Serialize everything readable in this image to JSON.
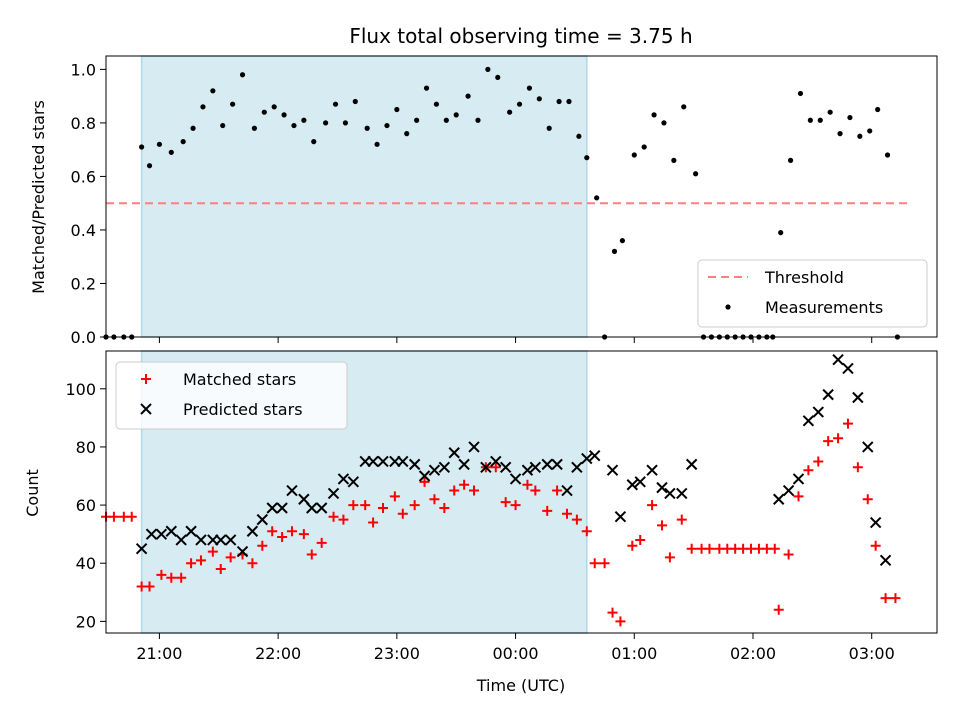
{
  "colors": {
    "span": "#add8e6",
    "threshold": "#ff7f7f",
    "measurements": "#000000",
    "matched": "#ff0000",
    "predicted": "#000000"
  },
  "chart_data": [
    {
      "type": "scatter",
      "title": "Flux total observing time = 3.75 h",
      "ylabel": "Matched/Predicted stars",
      "ylim": [
        0,
        1.05
      ],
      "yticks": [
        "0.0",
        "0.2",
        "0.4",
        "0.6",
        "0.8",
        "1.0"
      ],
      "xlim": [
        "20:33",
        "03:33"
      ],
      "span": [
        "20:51",
        "00:36"
      ],
      "legend": {
        "position": "lower-right",
        "entries": [
          "Threshold",
          "Measurements"
        ]
      },
      "threshold": {
        "name": "Threshold",
        "value": 0.5,
        "x": [
          "20:33",
          "03:18"
        ]
      },
      "series": [
        {
          "name": "Measurements",
          "points": [
            [
              "20:33",
              0
            ],
            [
              "20:37",
              0
            ],
            [
              "20:42",
              0
            ],
            [
              "20:46",
              0
            ],
            [
              "20:51",
              0.71
            ],
            [
              "20:55",
              0.64
            ],
            [
              "21:00",
              0.72
            ],
            [
              "21:06",
              0.69
            ],
            [
              "21:12",
              0.73
            ],
            [
              "21:17",
              0.78
            ],
            [
              "21:22",
              0.86
            ],
            [
              "21:27",
              0.92
            ],
            [
              "21:32",
              0.79
            ],
            [
              "21:37",
              0.87
            ],
            [
              "21:42",
              0.98
            ],
            [
              "21:48",
              0.78
            ],
            [
              "21:53",
              0.84
            ],
            [
              "21:58",
              0.86
            ],
            [
              "22:03",
              0.83
            ],
            [
              "22:08",
              0.79
            ],
            [
              "22:13",
              0.81
            ],
            [
              "22:18",
              0.73
            ],
            [
              "22:24",
              0.8
            ],
            [
              "22:29",
              0.87
            ],
            [
              "22:34",
              0.8
            ],
            [
              "22:39",
              0.88
            ],
            [
              "22:45",
              0.78
            ],
            [
              "22:50",
              0.72
            ],
            [
              "22:55",
              0.79
            ],
            [
              "23:00",
              0.85
            ],
            [
              "23:05",
              0.76
            ],
            [
              "23:10",
              0.81
            ],
            [
              "23:15",
              0.93
            ],
            [
              "23:20",
              0.87
            ],
            [
              "23:25",
              0.81
            ],
            [
              "23:30",
              0.83
            ],
            [
              "23:36",
              0.9
            ],
            [
              "23:41",
              0.81
            ],
            [
              "23:46",
              1.0
            ],
            [
              "23:51",
              0.97
            ],
            [
              "23:57",
              0.84
            ],
            [
              "00:02",
              0.87
            ],
            [
              "00:07",
              0.93
            ],
            [
              "00:12",
              0.89
            ],
            [
              "00:17",
              0.78
            ],
            [
              "00:22",
              0.88
            ],
            [
              "00:27",
              0.88
            ],
            [
              "00:32",
              0.75
            ],
            [
              "00:36",
              0.67
            ],
            [
              "00:41",
              0.52
            ],
            [
              "00:45",
              0
            ],
            [
              "00:50",
              0.32
            ],
            [
              "00:54",
              0.36
            ],
            [
              "01:00",
              0.68
            ],
            [
              "01:05",
              0.71
            ],
            [
              "01:10",
              0.83
            ],
            [
              "01:15",
              0.8
            ],
            [
              "01:20",
              0.66
            ],
            [
              "01:25",
              0.86
            ],
            [
              "01:31",
              0.61
            ],
            [
              "01:35",
              0
            ],
            [
              "01:39",
              0
            ],
            [
              "01:43",
              0
            ],
            [
              "01:47",
              0
            ],
            [
              "01:51",
              0
            ],
            [
              "01:55",
              0
            ],
            [
              "01:59",
              0
            ],
            [
              "02:03",
              0
            ],
            [
              "02:07",
              0
            ],
            [
              "02:10",
              0
            ],
            [
              "02:14",
              0.39
            ],
            [
              "02:19",
              0.66
            ],
            [
              "02:24",
              0.91
            ],
            [
              "02:29",
              0.81
            ],
            [
              "02:34",
              0.81
            ],
            [
              "02:39",
              0.84
            ],
            [
              "02:44",
              0.76
            ],
            [
              "02:49",
              0.82
            ],
            [
              "02:54",
              0.75
            ],
            [
              "02:59",
              0.77
            ],
            [
              "03:03",
              0.85
            ],
            [
              "03:08",
              0.68
            ],
            [
              "03:13",
              0
            ]
          ]
        }
      ]
    },
    {
      "type": "scatter",
      "xlabel": "Time (UTC)",
      "ylabel": "Count",
      "ylim": [
        16,
        113
      ],
      "yticks": [
        "20",
        "40",
        "60",
        "80",
        "100"
      ],
      "xticks": [
        "21:00",
        "22:00",
        "23:00",
        "00:00",
        "01:00",
        "02:00",
        "03:00"
      ],
      "xlim": [
        "20:33",
        "03:33"
      ],
      "span": [
        "20:51",
        "00:36"
      ],
      "legend": {
        "position": "upper-left",
        "entries": [
          "Matched stars",
          "Predicted stars"
        ]
      },
      "series": [
        {
          "name": "Matched stars",
          "points": [
            [
              "20:33",
              56
            ],
            [
              "20:37",
              56
            ],
            [
              "20:42",
              56
            ],
            [
              "20:46",
              56
            ],
            [
              "20:51",
              32
            ],
            [
              "20:55",
              32
            ],
            [
              "21:01",
              36
            ],
            [
              "21:06",
              35
            ],
            [
              "21:11",
              35
            ],
            [
              "21:16",
              40
            ],
            [
              "21:21",
              41
            ],
            [
              "21:27",
              44
            ],
            [
              "21:31",
              38
            ],
            [
              "21:36",
              42
            ],
            [
              "21:42",
              43
            ],
            [
              "21:47",
              40
            ],
            [
              "21:52",
              46
            ],
            [
              "21:57",
              51
            ],
            [
              "22:02",
              49
            ],
            [
              "22:07",
              51
            ],
            [
              "22:13",
              50
            ],
            [
              "22:17",
              43
            ],
            [
              "22:22",
              47
            ],
            [
              "22:28",
              56
            ],
            [
              "22:33",
              55
            ],
            [
              "22:38",
              60
            ],
            [
              "22:44",
              60
            ],
            [
              "22:48",
              54
            ],
            [
              "22:53",
              59
            ],
            [
              "22:59",
              63
            ],
            [
              "23:03",
              57
            ],
            [
              "23:09",
              60
            ],
            [
              "23:14",
              68
            ],
            [
              "23:19",
              62
            ],
            [
              "23:24",
              59
            ],
            [
              "23:29",
              65
            ],
            [
              "23:34",
              67
            ],
            [
              "23:39",
              65
            ],
            [
              "23:45",
              73
            ],
            [
              "23:50",
              73
            ],
            [
              "23:55",
              61
            ],
            [
              "00:00",
              60
            ],
            [
              "00:06",
              67
            ],
            [
              "00:10",
              65
            ],
            [
              "00:16",
              58
            ],
            [
              "00:21",
              65
            ],
            [
              "00:26",
              57
            ],
            [
              "00:31",
              55
            ],
            [
              "00:36",
              51
            ],
            [
              "00:40",
              40
            ],
            [
              "00:45",
              40
            ],
            [
              "00:49",
              23
            ],
            [
              "00:53",
              20
            ],
            [
              "00:59",
              46
            ],
            [
              "01:03",
              48
            ],
            [
              "01:09",
              60
            ],
            [
              "01:14",
              53
            ],
            [
              "01:18",
              42
            ],
            [
              "01:24",
              55
            ],
            [
              "01:29",
              45
            ],
            [
              "01:34",
              45
            ],
            [
              "01:38",
              45
            ],
            [
              "01:43",
              45
            ],
            [
              "01:47",
              45
            ],
            [
              "01:51",
              45
            ],
            [
              "01:55",
              45
            ],
            [
              "01:59",
              45
            ],
            [
              "02:03",
              45
            ],
            [
              "02:07",
              45
            ],
            [
              "02:11",
              45
            ],
            [
              "02:13",
              24
            ],
            [
              "02:18",
              43
            ],
            [
              "02:23",
              63
            ],
            [
              "02:28",
              72
            ],
            [
              "02:33",
              75
            ],
            [
              "02:38",
              82
            ],
            [
              "02:43",
              83
            ],
            [
              "02:48",
              88
            ],
            [
              "02:53",
              73
            ],
            [
              "02:58",
              62
            ],
            [
              "03:02",
              46
            ],
            [
              "03:07",
              28
            ],
            [
              "03:12",
              28
            ]
          ]
        },
        {
          "name": "Predicted stars",
          "points": [
            [
              "20:51",
              45
            ],
            [
              "20:56",
              50
            ],
            [
              "21:01",
              50
            ],
            [
              "21:06",
              51
            ],
            [
              "21:11",
              48
            ],
            [
              "21:16",
              51
            ],
            [
              "21:21",
              48
            ],
            [
              "21:27",
              48
            ],
            [
              "21:31",
              48
            ],
            [
              "21:36",
              48
            ],
            [
              "21:42",
              44
            ],
            [
              "21:47",
              51
            ],
            [
              "21:52",
              55
            ],
            [
              "21:57",
              59
            ],
            [
              "22:02",
              59
            ],
            [
              "22:07",
              65
            ],
            [
              "22:13",
              62
            ],
            [
              "22:17",
              59
            ],
            [
              "22:22",
              59
            ],
            [
              "22:28",
              64
            ],
            [
              "22:33",
              69
            ],
            [
              "22:38",
              68
            ],
            [
              "22:44",
              75
            ],
            [
              "22:48",
              75
            ],
            [
              "22:53",
              75
            ],
            [
              "22:59",
              75
            ],
            [
              "23:03",
              75
            ],
            [
              "23:09",
              74
            ],
            [
              "23:14",
              70
            ],
            [
              "23:19",
              72
            ],
            [
              "23:24",
              73
            ],
            [
              "23:29",
              78
            ],
            [
              "23:34",
              74
            ],
            [
              "23:39",
              80
            ],
            [
              "23:45",
              73
            ],
            [
              "23:50",
              75
            ],
            [
              "23:55",
              73
            ],
            [
              "00:00",
              69
            ],
            [
              "00:06",
              72
            ],
            [
              "00:10",
              73
            ],
            [
              "00:16",
              74
            ],
            [
              "00:21",
              74
            ],
            [
              "00:26",
              65
            ],
            [
              "00:31",
              73
            ],
            [
              "00:36",
              76
            ],
            [
              "00:40",
              77
            ],
            [
              "00:49",
              72
            ],
            [
              "00:53",
              56
            ],
            [
              "00:59",
              67
            ],
            [
              "01:03",
              68
            ],
            [
              "01:09",
              72
            ],
            [
              "01:14",
              66
            ],
            [
              "01:18",
              64
            ],
            [
              "01:24",
              64
            ],
            [
              "01:29",
              74
            ],
            [
              "02:13",
              62
            ],
            [
              "02:18",
              65
            ],
            [
              "02:23",
              69
            ],
            [
              "02:28",
              89
            ],
            [
              "02:33",
              92
            ],
            [
              "02:38",
              98
            ],
            [
              "02:43",
              110
            ],
            [
              "02:48",
              107
            ],
            [
              "02:53",
              97
            ],
            [
              "02:58",
              80
            ],
            [
              "03:02",
              54
            ],
            [
              "03:07",
              41
            ]
          ]
        }
      ]
    }
  ]
}
